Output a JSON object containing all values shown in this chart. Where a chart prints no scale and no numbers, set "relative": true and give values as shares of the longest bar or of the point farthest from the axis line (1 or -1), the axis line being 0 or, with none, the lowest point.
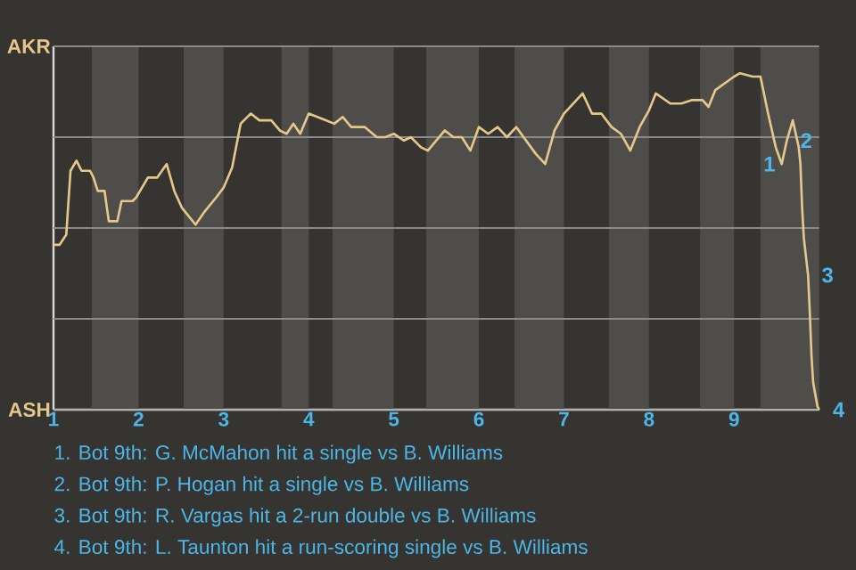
{
  "chart_data": {
    "type": "line",
    "relative": true,
    "xlim": [
      1,
      10
    ],
    "xticks": [
      1,
      2,
      3,
      4,
      5,
      6,
      7,
      8,
      9
    ],
    "marker": "none",
    "line_style": "solid",
    "ref_lines": [
      {
        "axis": "y",
        "value": 0,
        "label": "ASH",
        "color": "#b0b0b0"
      },
      {
        "axis": "y",
        "value": 0.27,
        "color": "#8a8a8a"
      },
      {
        "axis": "y",
        "value": 0.54,
        "color": "#8a8a8a"
      },
      {
        "axis": "y",
        "value": 0.81,
        "color": "#8a8a8a"
      },
      {
        "axis": "y",
        "value": 1.08,
        "label": "AKR",
        "color": "#8a8a8a"
      }
    ],
    "bands": [
      {
        "axis": "x",
        "from": 1.45,
        "to": 2,
        "color": "#4e4d4a"
      },
      {
        "axis": "x",
        "from": 2.53,
        "to": 3,
        "color": "#4e4d4a"
      },
      {
        "axis": "x",
        "from": 3.68,
        "to": 4,
        "color": "#4e4d4a"
      },
      {
        "axis": "x",
        "from": 4.28,
        "to": 5,
        "color": "#4e4d4a"
      },
      {
        "axis": "x",
        "from": 5.38,
        "to": 6,
        "color": "#4e4d4a"
      },
      {
        "axis": "x",
        "from": 6.42,
        "to": 7,
        "color": "#4e4d4a"
      },
      {
        "axis": "x",
        "from": 7.53,
        "to": 8,
        "color": "#4e4d4a"
      },
      {
        "axis": "x",
        "from": 8.6,
        "to": 9,
        "color": "#4e4d4a"
      },
      {
        "axis": "x",
        "from": 9.31,
        "to": 10,
        "color": "#4e4d4a"
      }
    ],
    "series": [
      {
        "color": "#e6c78a",
        "x": [
          1,
          1.07,
          1.15,
          1.2,
          1.27,
          1.33,
          1.43,
          1.47,
          1.52,
          1.6,
          1.65,
          1.75,
          1.8,
          1.93,
          1.97,
          2.11,
          2.22,
          2.33,
          2.42,
          2.51,
          2.67,
          2.78,
          2.91,
          3,
          3.1,
          3.2,
          3.32,
          3.42,
          3.56,
          3.66,
          3.74,
          3.82,
          3.9,
          4,
          4.1,
          4.2,
          4.3,
          4.4,
          4.5,
          4.66,
          4.8,
          4.9,
          5,
          5.12,
          5.2,
          5.32,
          5.4,
          5.6,
          5.7,
          5.8,
          5.9,
          6,
          6.11,
          6.22,
          6.33,
          6.44,
          6.67,
          6.78,
          6.89,
          7,
          7.22,
          7.33,
          7.44,
          7.56,
          7.67,
          7.78,
          7.89,
          8,
          8.08,
          8.25,
          8.38,
          8.5,
          8.63,
          8.7,
          8.78,
          9,
          9.07,
          9.22,
          9.31,
          9.4,
          9.49,
          9.56,
          9.62,
          9.69,
          9.76,
          9.78,
          9.8,
          9.82,
          9.87,
          9.89,
          9.91,
          9.93,
          9.98,
          10
        ],
        "values": [
          0.49,
          0.49,
          0.52,
          0.71,
          0.74,
          0.71,
          0.71,
          0.69,
          0.65,
          0.65,
          0.56,
          0.56,
          0.62,
          0.62,
          0.63,
          0.69,
          0.69,
          0.73,
          0.65,
          0.6,
          0.55,
          0.59,
          0.63,
          0.66,
          0.72,
          0.85,
          0.88,
          0.86,
          0.86,
          0.83,
          0.82,
          0.85,
          0.82,
          0.88,
          0.87,
          0.86,
          0.85,
          0.87,
          0.84,
          0.84,
          0.81,
          0.81,
          0.82,
          0.8,
          0.81,
          0.78,
          0.77,
          0.83,
          0.81,
          0.81,
          0.77,
          0.84,
          0.82,
          0.84,
          0.81,
          0.84,
          0.76,
          0.73,
          0.83,
          0.88,
          0.94,
          0.88,
          0.88,
          0.84,
          0.82,
          0.77,
          0.84,
          0.89,
          0.94,
          0.91,
          0.91,
          0.92,
          0.92,
          0.9,
          0.95,
          0.99,
          1,
          0.99,
          0.99,
          0.88,
          0.78,
          0.73,
          0.8,
          0.86,
          0.78,
          0.73,
          0.6,
          0.51,
          0.4,
          0.29,
          0.16,
          0.08,
          0.01,
          0
        ]
      }
    ],
    "annotations": [
      {
        "text": "1",
        "x": 9.56,
        "y": 0.73
      },
      {
        "text": "2",
        "x": 9.62,
        "y": 0.8
      },
      {
        "text": "3",
        "x": 9.87,
        "y": 0.4
      },
      {
        "text": "4",
        "x": 10,
        "y": 0
      },
      "1. Bot 9th: G. McMahon hit a single vs B. Williams",
      "2. Bot 9th: P. Hogan hit a single vs B. Williams",
      "3. Bot 9th: R. Vargas hit a 2-run double vs B. Williams",
      "4. Bot 9th: L. Taunton hit a run-scoring single vs B. Williams"
    ]
  }
}
